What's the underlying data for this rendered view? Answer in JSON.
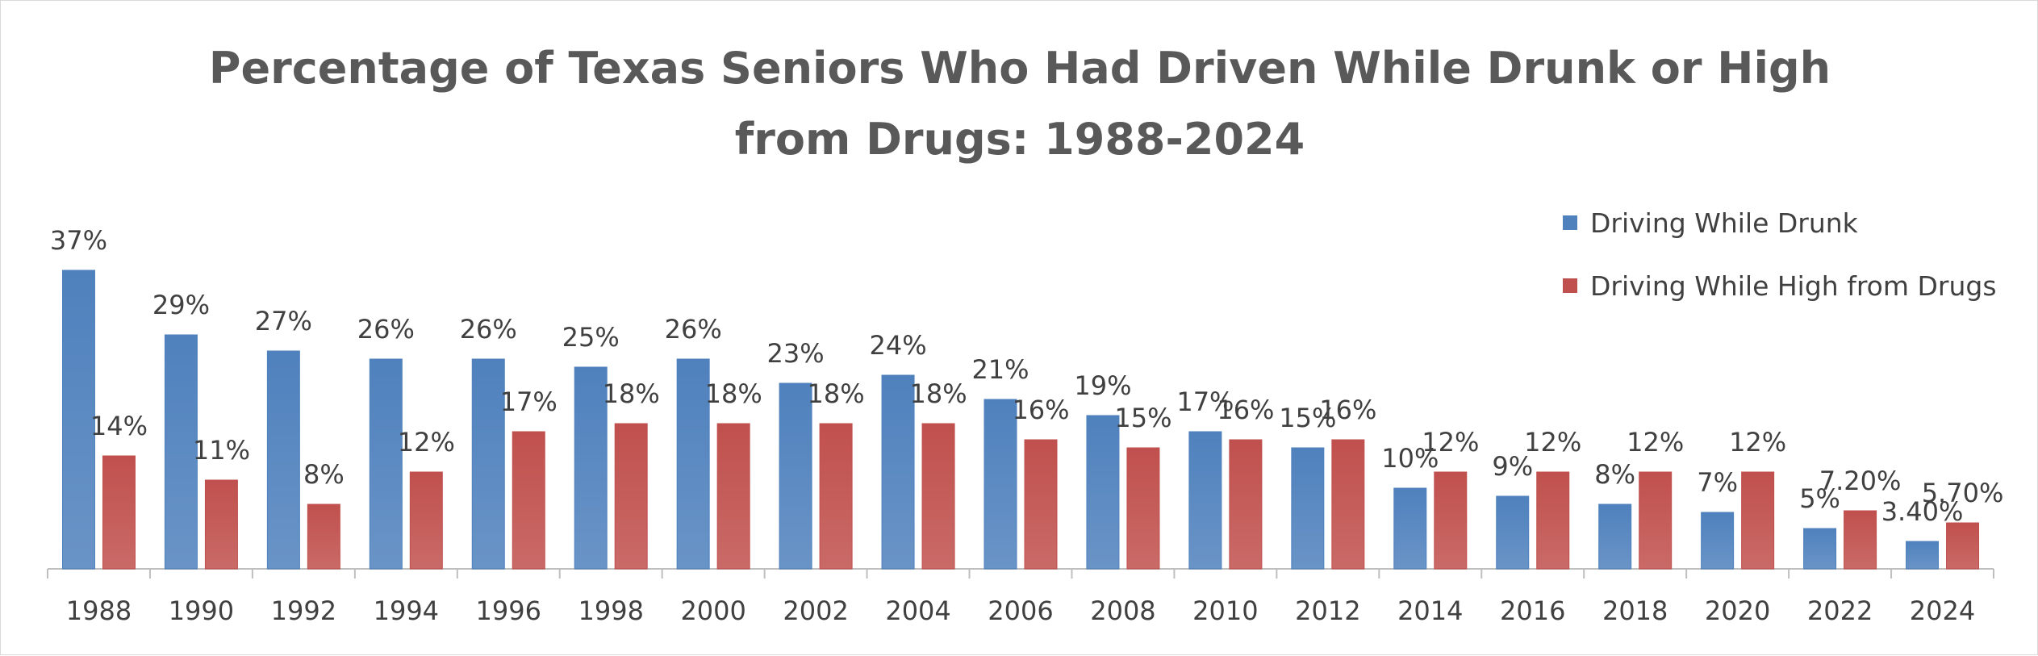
{
  "chart_data": {
    "type": "bar",
    "title_lines": [
      "Percentage of Texas Seniors Who Had Driven While Drunk or High",
      "from Drugs: 1988-2024"
    ],
    "xlabel": "",
    "ylabel": "",
    "ylim": [
      0,
      40
    ],
    "grid": false,
    "legend_position": "top-right",
    "categories": [
      "1988",
      "1990",
      "1992",
      "1994",
      "1996",
      "1998",
      "2000",
      "2002",
      "2004",
      "2006",
      "2008",
      "2010",
      "2012",
      "2014",
      "2016",
      "2018",
      "2020",
      "2022",
      "2024"
    ],
    "series": [
      {
        "name": "Driving While Drunk",
        "color": "#4f81bd",
        "values": [
          37,
          29,
          27,
          26,
          26,
          25,
          26,
          23,
          24,
          21,
          19,
          17,
          15,
          10,
          9,
          8,
          7,
          5,
          3.4
        ],
        "labels": [
          "37%",
          "29%",
          "27%",
          "26%",
          "26%",
          "25%",
          "26%",
          "23%",
          "24%",
          "21%",
          "19%",
          "17%",
          "15%",
          "10%",
          "9%",
          "8%",
          "7%",
          "5%",
          "3.40%"
        ]
      },
      {
        "name": "Driving While High from Drugs",
        "color": "#c0504d",
        "values": [
          14,
          11,
          8,
          12,
          17,
          18,
          18,
          18,
          18,
          16,
          15,
          16,
          16,
          12,
          12,
          12,
          12,
          7.2,
          5.7
        ],
        "labels": [
          "14%",
          "11%",
          "8%",
          "12%",
          "17%",
          "18%",
          "18%",
          "18%",
          "18%",
          "16%",
          "15%",
          "16%",
          "16%",
          "12%",
          "12%",
          "12%",
          "12%",
          "7.20%",
          "5.70%"
        ]
      }
    ]
  }
}
